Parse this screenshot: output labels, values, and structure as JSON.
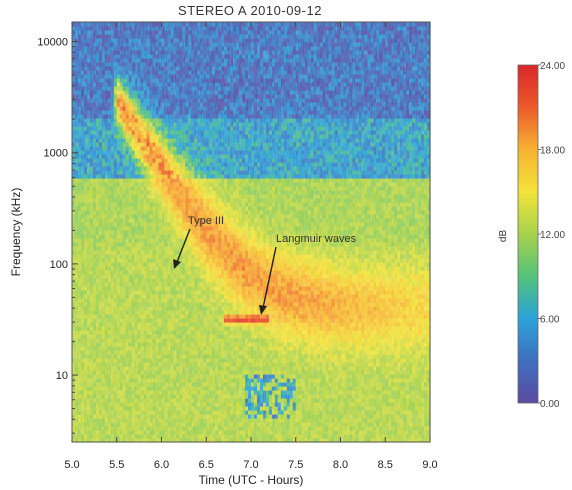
{
  "chart_data": {
    "type": "heatmap",
    "title": "STEREO A 2010-09-12",
    "xlabel": "Time (UTC - Hours)",
    "ylabel": "Frequency (kHz)",
    "xlim": [
      5.0,
      9.0
    ],
    "ylim": [
      2.5,
      15000
    ],
    "y_scale": "log",
    "x_ticks": [
      "5.0",
      "5.5",
      "6.0",
      "6.5",
      "7.0",
      "7.5",
      "8.0",
      "8.5",
      "9.0"
    ],
    "x_tick_values": [
      5.0,
      5.5,
      6.0,
      6.5,
      7.0,
      7.5,
      8.0,
      8.5,
      9.0
    ],
    "y_ticks": [
      "10",
      "100",
      "1000",
      "10000"
    ],
    "y_tick_values": [
      10,
      100,
      1000,
      10000
    ],
    "colorbar": {
      "label": "dB",
      "range": [
        0,
        24
      ],
      "ticks": [
        "0.00",
        "6.00",
        "12.00",
        "18.00",
        "24.00"
      ],
      "tick_values": [
        0,
        6,
        12,
        18,
        24
      ],
      "colormap": [
        "#5b4a9e",
        "#3f6fc0",
        "#2aa3d8",
        "#55c27a",
        "#a8d24c",
        "#f3e43a",
        "#f7b233",
        "#ec5a2a",
        "#d9262a"
      ]
    },
    "background_levels": [
      {
        "freq_min": 2.5,
        "freq_max": 150,
        "level": 12.5
      },
      {
        "freq_min": 150,
        "freq_max": 600,
        "level": 12
      },
      {
        "freq_min": 600,
        "freq_max": 2000,
        "level": 6
      },
      {
        "freq_min": 2000,
        "freq_max": 15000,
        "level": 3
      }
    ],
    "burst_drift": {
      "name": "Type III",
      "t_start": 5.5,
      "freq_start": 3000,
      "freq_floor": 40,
      "decay_hours": 0.35,
      "peak_level": 21
    },
    "langmuir": {
      "name": "Langmuir waves",
      "t_range": [
        6.7,
        7.2
      ],
      "freq": 32,
      "level": 23
    },
    "interference_band": {
      "t_range": [
        6.95,
        7.5
      ],
      "freq_range": [
        4,
        10
      ],
      "level": 3
    },
    "annotations": [
      {
        "text": "Type III",
        "x": 6.45,
        "y": 160,
        "arrow_to": [
          6.2,
          100
        ]
      },
      {
        "text": "Langmuir waves",
        "x": 7.1,
        "y": 95,
        "arrow_to": [
          7.05,
          38
        ]
      }
    ]
  }
}
